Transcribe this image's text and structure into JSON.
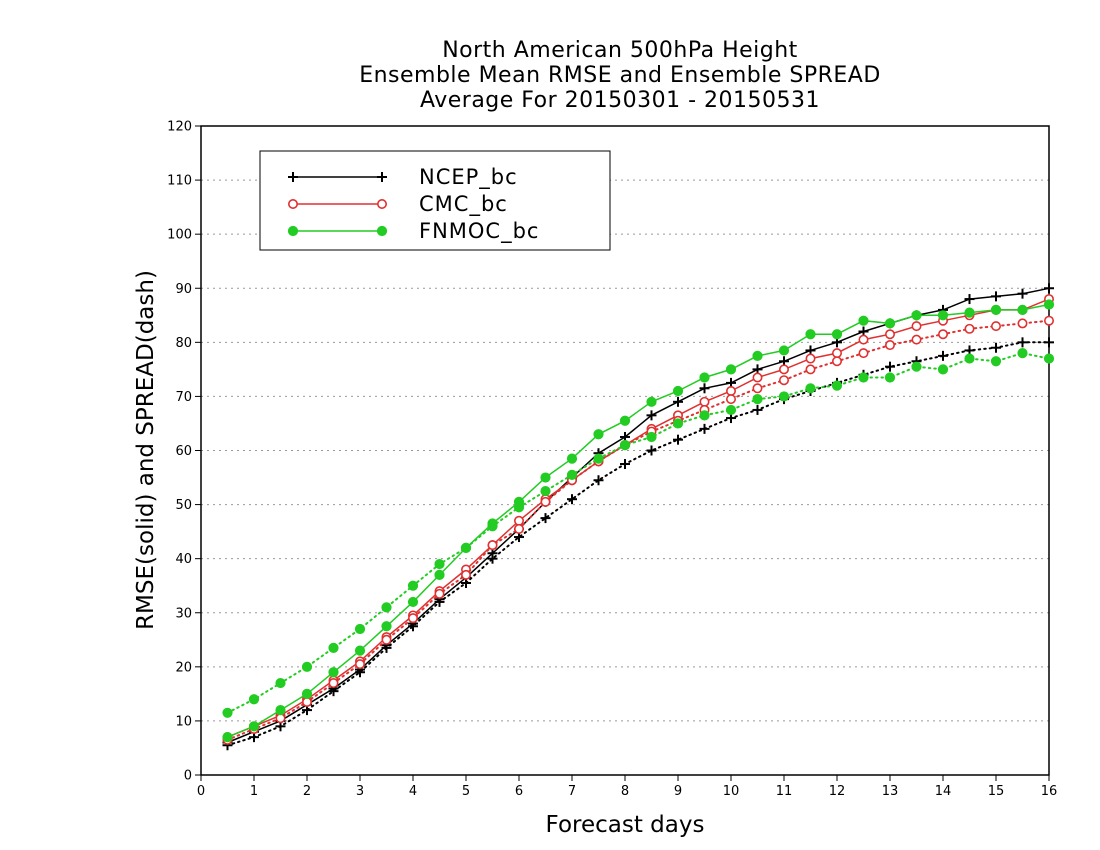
{
  "chart_data": {
    "type": "line",
    "title": [
      "North American 500hPa Height",
      "Ensemble Mean RMSE and Ensemble SPREAD",
      "Average For 20150301 - 20150531"
    ],
    "xlabel": "Forecast days",
    "ylabel": "RMSE(solid) and SPREAD(dash)",
    "xlim": [
      0,
      16
    ],
    "ylim": [
      0,
      120
    ],
    "xticks": [
      0,
      1,
      2,
      3,
      4,
      5,
      6,
      7,
      8,
      9,
      10,
      11,
      12,
      13,
      14,
      15,
      16
    ],
    "yticks": [
      0,
      10,
      20,
      30,
      40,
      50,
      60,
      70,
      80,
      90,
      100,
      110,
      120
    ],
    "grid": "horizontal dotted",
    "legend_position": "top-left",
    "x": [
      0.5,
      1,
      1.5,
      2,
      2.5,
      3,
      3.5,
      4,
      4.5,
      5,
      5.5,
      6,
      6.5,
      7,
      7.5,
      8,
      8.5,
      9,
      9.5,
      10,
      10.5,
      11,
      11.5,
      12,
      12.5,
      13,
      13.5,
      14,
      14.5,
      15,
      15.5,
      16
    ],
    "series": [
      {
        "name": "NCEP_bc",
        "color": "#000000",
        "marker": "plus",
        "style": "solid",
        "values": [
          6.0,
          8.0,
          10.0,
          13.0,
          16.0,
          19.5,
          24.0,
          28.0,
          32.5,
          36.5,
          41.0,
          45.5,
          50.5,
          55.0,
          59.5,
          62.5,
          66.5,
          69.0,
          71.5,
          72.5,
          75.0,
          76.5,
          78.5,
          80.0,
          82.0,
          83.5,
          85.0,
          86.0,
          88.0,
          88.5,
          89.0,
          90.0
        ]
      },
      {
        "name": "NCEP_bc spread",
        "color": "#000000",
        "marker": "plus",
        "style": "dotted",
        "values": [
          5.5,
          7.0,
          9.0,
          12.0,
          15.5,
          19.0,
          23.5,
          27.5,
          32.0,
          35.5,
          40.0,
          44.0,
          47.5,
          51.0,
          54.5,
          57.5,
          60.0,
          62.0,
          64.0,
          66.0,
          67.5,
          69.5,
          71.0,
          72.5,
          74.0,
          75.5,
          76.5,
          77.5,
          78.5,
          79.0,
          80.0,
          80.0
        ]
      },
      {
        "name": "CMC_bc",
        "color": "#e03030",
        "marker": "circle-open",
        "style": "solid",
        "values": [
          7.0,
          9.0,
          11.0,
          14.0,
          17.5,
          21.0,
          25.5,
          29.5,
          34.0,
          38.0,
          42.5,
          47.0,
          51.0,
          54.5,
          58.0,
          61.0,
          64.0,
          66.5,
          69.0,
          71.0,
          73.5,
          75.0,
          77.0,
          78.0,
          80.5,
          81.5,
          83.0,
          84.0,
          85.0,
          86.0,
          86.0,
          88.0
        ]
      },
      {
        "name": "CMC_bc spread",
        "color": "#e03030",
        "marker": "circle-open",
        "style": "dotted",
        "values": [
          6.5,
          8.5,
          10.5,
          13.5,
          17.0,
          20.5,
          25.0,
          29.0,
          33.5,
          37.0,
          42.5,
          45.5,
          50.5,
          54.5,
          58.0,
          61.0,
          63.5,
          65.5,
          67.5,
          69.5,
          71.5,
          73.0,
          75.0,
          76.5,
          78.0,
          79.5,
          80.5,
          81.5,
          82.5,
          83.0,
          83.5,
          84.0
        ]
      },
      {
        "name": "FNMOC_bc",
        "color": "#22cc22",
        "marker": "circle-filled",
        "style": "solid",
        "values": [
          7.0,
          9.0,
          12.0,
          15.0,
          19.0,
          23.0,
          27.5,
          32.0,
          37.0,
          42.0,
          46.5,
          50.5,
          55.0,
          58.5,
          63.0,
          65.5,
          69.0,
          71.0,
          73.5,
          75.0,
          77.5,
          78.5,
          81.5,
          81.5,
          84.0,
          83.5,
          85.0,
          85.0,
          85.5,
          86.0,
          86.0,
          87.0
        ]
      },
      {
        "name": "FNMOC_bc spread",
        "color": "#22cc22",
        "marker": "circle-filled",
        "style": "dotted",
        "values": [
          11.5,
          14.0,
          17.0,
          20.0,
          23.5,
          27.0,
          31.0,
          35.0,
          39.0,
          42.0,
          46.0,
          49.5,
          52.5,
          55.5,
          58.5,
          61.0,
          62.5,
          65.0,
          66.5,
          67.5,
          69.5,
          70.0,
          71.5,
          72.0,
          73.5,
          73.5,
          75.5,
          75.0,
          77.0,
          76.5,
          78.0,
          77.0
        ]
      }
    ],
    "legend": [
      "NCEP_bc",
      "CMC_bc",
      "FNMOC_bc"
    ]
  }
}
